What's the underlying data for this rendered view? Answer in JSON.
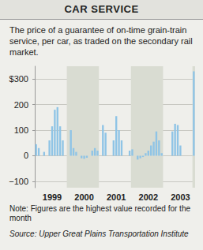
{
  "chart_data": {
    "type": "bar",
    "title": "CAR SERVICE",
    "subtitle": "The price of a guarantee of on-time grain-train service, per car, as traded on the secondary rail market.",
    "annotations": [
      "Note: Figures are the highest value recorded for the month",
      "Source: Upper Great Plains Transportation Institute"
    ],
    "categories": [
      null,
      null,
      null,
      null,
      null,
      null,
      "1999",
      null,
      null,
      null,
      null,
      null,
      null,
      null,
      null,
      null,
      null,
      null,
      "2000",
      null,
      null,
      null,
      null,
      null,
      null,
      null,
      null,
      null,
      null,
      null,
      "2001",
      null,
      null,
      null,
      null,
      null,
      null,
      null,
      null,
      null,
      null,
      null,
      "2002",
      null,
      null,
      null,
      null,
      null,
      null,
      null,
      null,
      null,
      null,
      null,
      "2003",
      null,
      null,
      null,
      null,
      null
    ],
    "values": [
      45,
      30,
      0,
      15,
      0,
      60,
      115,
      180,
      190,
      115,
      60,
      0,
      0,
      100,
      30,
      15,
      0,
      -10,
      -12,
      -8,
      0,
      20,
      30,
      20,
      0,
      120,
      90,
      0,
      0,
      60,
      155,
      100,
      60,
      0,
      0,
      20,
      25,
      0,
      -15,
      -10,
      -5,
      10,
      20,
      40,
      55,
      95,
      60,
      10,
      0,
      0,
      0,
      95,
      125,
      120,
      40,
      0,
      0,
      0,
      0,
      330
    ],
    "color": "#8fc4e6",
    "ylim": [
      -125,
      350
    ],
    "yticks": [
      {
        "value": -100,
        "label": "−100"
      },
      0,
      100,
      200,
      {
        "value": 300,
        "label": "$300"
      }
    ],
    "grid": true
  }
}
